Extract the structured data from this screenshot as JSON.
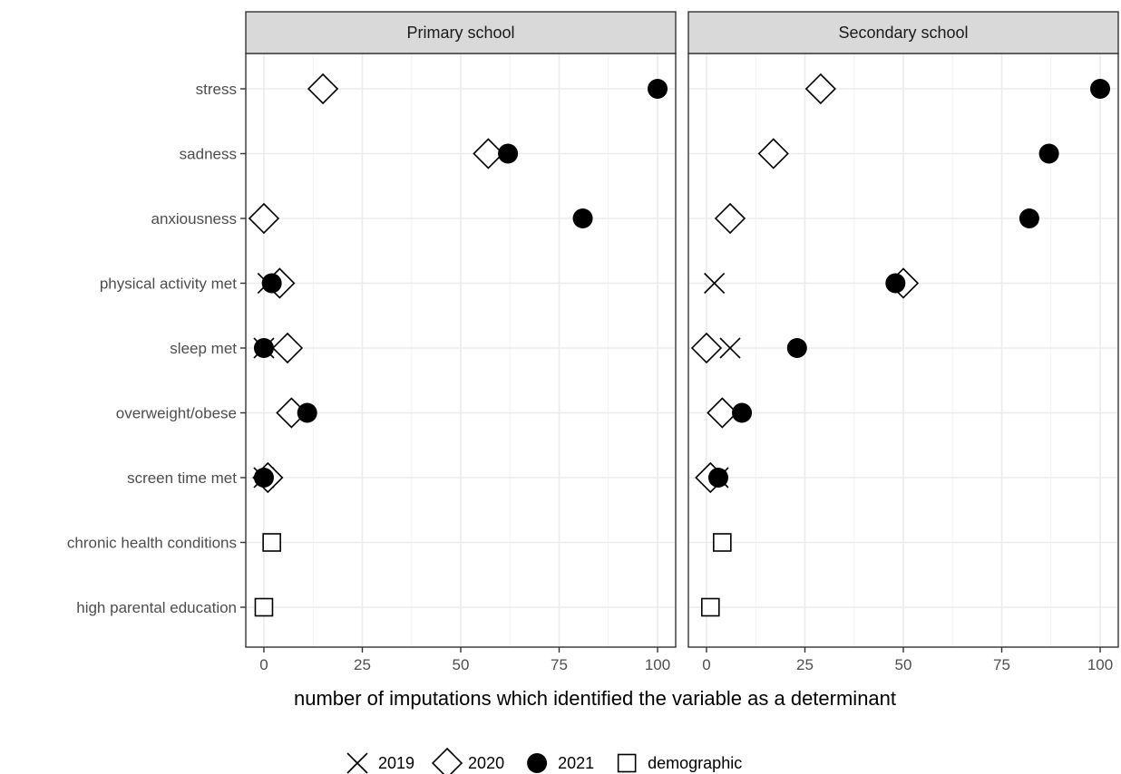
{
  "chart_data": {
    "type": "scatter",
    "xlabel": "number of imputations which identified the variable as a determinant",
    "xlim": [
      -4.6,
      104.6
    ],
    "xticks": [
      0,
      25,
      50,
      75,
      100
    ],
    "grid": true,
    "legend_position": "bottom",
    "categories": [
      "stress",
      "sadness",
      "anxiousness",
      "physical activity met",
      "sleep met",
      "overweight/obese",
      "screen time met",
      "chronic health conditions",
      "high parental education"
    ],
    "legend": [
      {
        "key": "2019",
        "label": "2019",
        "shape": "x-cross"
      },
      {
        "key": "2020",
        "label": "2020",
        "shape": "open-diamond"
      },
      {
        "key": "2021",
        "label": "2021",
        "shape": "filled-circle"
      },
      {
        "key": "demographic",
        "label": "demographic",
        "shape": "open-square"
      }
    ],
    "panels": [
      {
        "title": "Primary school",
        "series": [
          {
            "key": "2019",
            "points": [
              {
                "category": "physical activity met",
                "value": 1
              },
              {
                "category": "sleep met",
                "value": 0
              },
              {
                "category": "screen time met",
                "value": 0
              }
            ]
          },
          {
            "key": "2020",
            "points": [
              {
                "category": "stress",
                "value": 15
              },
              {
                "category": "sadness",
                "value": 57
              },
              {
                "category": "anxiousness",
                "value": 0
              },
              {
                "category": "physical activity met",
                "value": 4
              },
              {
                "category": "sleep met",
                "value": 6
              },
              {
                "category": "overweight/obese",
                "value": 7
              },
              {
                "category": "screen time met",
                "value": 1
              }
            ]
          },
          {
            "key": "2021",
            "points": [
              {
                "category": "stress",
                "value": 100
              },
              {
                "category": "sadness",
                "value": 62
              },
              {
                "category": "anxiousness",
                "value": 81
              },
              {
                "category": "physical activity met",
                "value": 2
              },
              {
                "category": "sleep met",
                "value": 0
              },
              {
                "category": "overweight/obese",
                "value": 11
              },
              {
                "category": "screen time met",
                "value": 0
              }
            ]
          },
          {
            "key": "demographic",
            "points": [
              {
                "category": "chronic health conditions",
                "value": 2
              },
              {
                "category": "high parental education",
                "value": 0
              }
            ]
          }
        ]
      },
      {
        "title": "Secondary school",
        "series": [
          {
            "key": "2019",
            "points": [
              {
                "category": "physical activity met",
                "value": 2
              },
              {
                "category": "sleep met",
                "value": 6
              },
              {
                "category": "screen time met",
                "value": 3
              }
            ]
          },
          {
            "key": "2020",
            "points": [
              {
                "category": "stress",
                "value": 29
              },
              {
                "category": "sadness",
                "value": 17
              },
              {
                "category": "anxiousness",
                "value": 6
              },
              {
                "category": "physical activity met",
                "value": 50
              },
              {
                "category": "sleep met",
                "value": 0
              },
              {
                "category": "overweight/obese",
                "value": 4
              },
              {
                "category": "screen time met",
                "value": 1
              }
            ]
          },
          {
            "key": "2021",
            "points": [
              {
                "category": "stress",
                "value": 100
              },
              {
                "category": "sadness",
                "value": 87
              },
              {
                "category": "anxiousness",
                "value": 82
              },
              {
                "category": "physical activity met",
                "value": 48
              },
              {
                "category": "sleep met",
                "value": 23
              },
              {
                "category": "overweight/obese",
                "value": 9
              },
              {
                "category": "screen time met",
                "value": 3
              }
            ]
          },
          {
            "key": "demographic",
            "points": [
              {
                "category": "chronic health conditions",
                "value": 4
              },
              {
                "category": "high parental education",
                "value": 1
              }
            ]
          }
        ]
      }
    ]
  }
}
